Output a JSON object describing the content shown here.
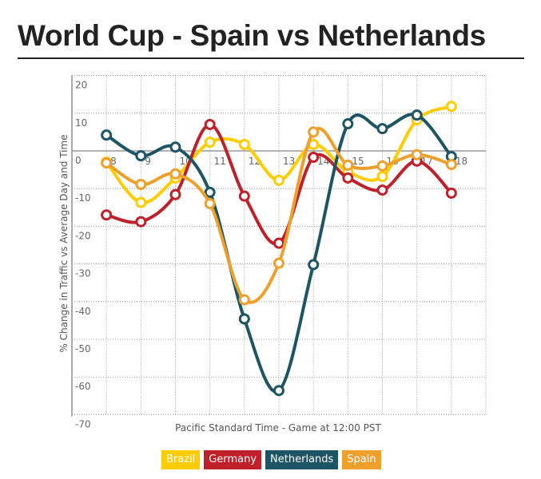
{
  "title": "World Cup - Spain vs Netherlands",
  "chart_data": {
    "type": "line",
    "title": "World Cup - Spain vs Netherlands",
    "xlabel": "Pacific Standard Time - Game at 12:00 PST",
    "ylabel": "% Change in Traffic vs Average Day and Time",
    "x": [
      8,
      9,
      10,
      11,
      12,
      13,
      14,
      15,
      16,
      17,
      18
    ],
    "x_tick_labels": [
      "8",
      "9",
      "10",
      "11",
      "12",
      "13",
      "14",
      "15",
      "16",
      "17",
      "18"
    ],
    "y_tick_labels": [
      "20",
      "10",
      "0",
      "-10",
      "-20",
      "-30",
      "-40",
      "-50",
      "-60",
      "-70"
    ],
    "xlim": [
      7,
      19
    ],
    "ylim": [
      -70,
      20
    ],
    "grid": true,
    "legend": "bottom",
    "series": [
      {
        "name": "Brazil",
        "color": "#FFCC00",
        "values": [
          -3,
          -13.7,
          -7.2,
          2.3,
          1.7,
          -7.8,
          1.7,
          -5.5,
          -6.8,
          8.2,
          11.8
        ]
      },
      {
        "name": "Germany",
        "color": "#C0202A",
        "values": [
          -17,
          -18.8,
          -11.6,
          7,
          -12,
          -24.5,
          -1.7,
          -7.2,
          -10.4,
          -2.7,
          -11.2
        ]
      },
      {
        "name": "Netherlands",
        "color": "#1E5564",
        "values": [
          4.2,
          -1.3,
          1,
          -11,
          -44.6,
          -63.6,
          -30.2,
          7.2,
          5.9,
          9.5,
          -1.5
        ]
      },
      {
        "name": "Spain",
        "color": "#EFA02A",
        "values": [
          -3.2,
          -8.9,
          -6.1,
          -14,
          -39.5,
          -29.8,
          5,
          -3.8,
          -4,
          -1,
          -3.6
        ]
      }
    ]
  }
}
